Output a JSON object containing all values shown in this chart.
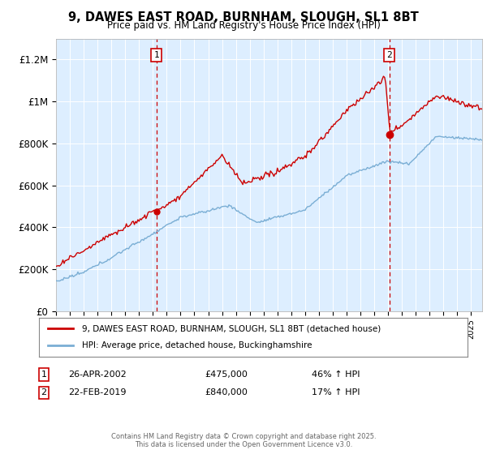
{
  "title": "9, DAWES EAST ROAD, BURNHAM, SLOUGH, SL1 8BT",
  "subtitle": "Price paid vs. HM Land Registry's House Price Index (HPI)",
  "ylabel_ticks": [
    "£0",
    "£200K",
    "£400K",
    "£600K",
    "£800K",
    "£1M",
    "£1.2M"
  ],
  "ylim": [
    0,
    1300000
  ],
  "yticks": [
    0,
    200000,
    400000,
    600000,
    800000,
    1000000,
    1200000
  ],
  "legend_line1": "9, DAWES EAST ROAD, BURNHAM, SLOUGH, SL1 8BT (detached house)",
  "legend_line2": "HPI: Average price, detached house, Buckinghamshire",
  "marker1_label": "1",
  "marker1_date_str": "26-APR-2002",
  "marker1_price_str": "£475,000",
  "marker1_pct": "46% ↑ HPI",
  "marker2_label": "2",
  "marker2_date_str": "22-FEB-2019",
  "marker2_price_str": "£840,000",
  "marker2_pct": "17% ↑ HPI",
  "footer": "Contains HM Land Registry data © Crown copyright and database right 2025.\nThis data is licensed under the Open Government Licence v3.0.",
  "red_color": "#cc0000",
  "blue_color": "#7aaed4",
  "bg_color": "#ddeeff",
  "marker1_year": 2002.32,
  "marker2_year": 2019.13
}
